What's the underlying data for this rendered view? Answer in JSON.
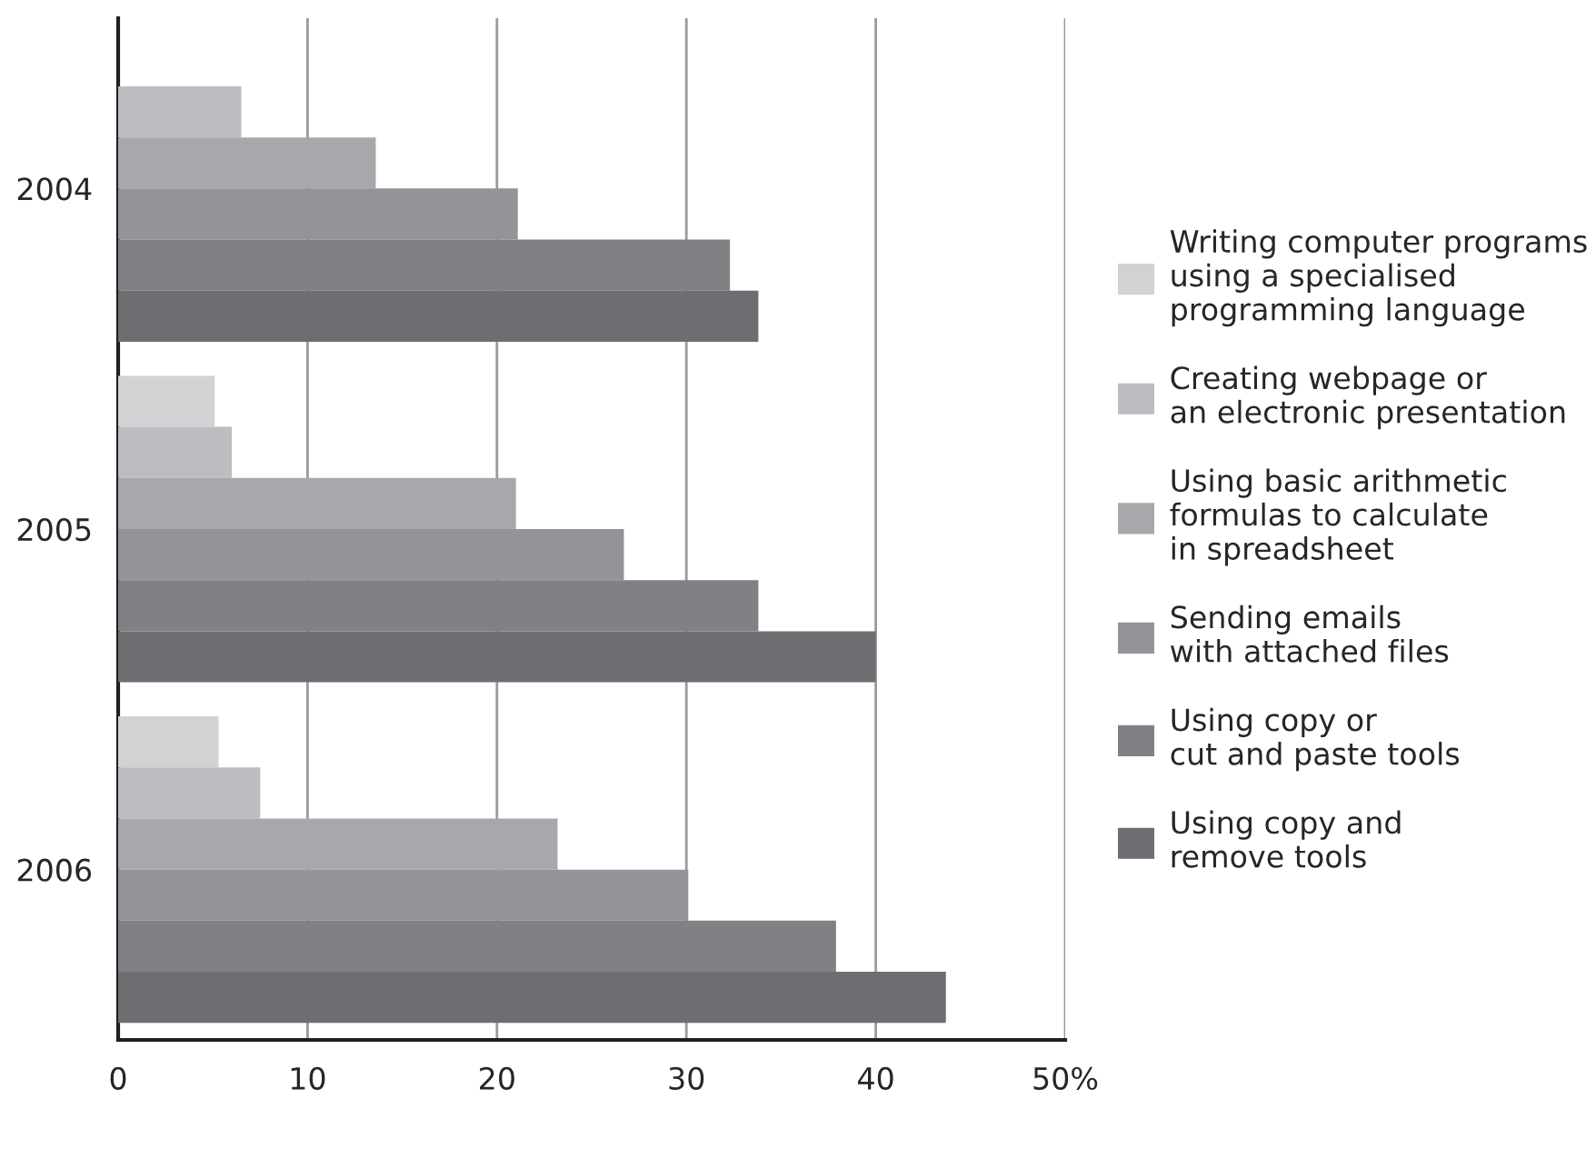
{
  "chart_data": {
    "type": "bar",
    "orientation": "horizontal",
    "categories": [
      "2004",
      "2005",
      "2006"
    ],
    "series": [
      {
        "name": "Writing computer programs\nusing a specialised\nprogramming language",
        "color": "#d1d2d4",
        "values": [
          null,
          5.1,
          5.3
        ]
      },
      {
        "name": "Creating webpage or\nan electronic presentation",
        "color": "#bcbdc0",
        "values": [
          6.5,
          6.0,
          7.5
        ]
      },
      {
        "name": "Using basic arithmetic\nformulas to calculate\nin spreadsheet",
        "color": "#a7a8ab",
        "values": [
          13.6,
          21.0,
          23.2
        ]
      },
      {
        "name": "Sending emails\nwith attached files",
        "color": "#939497",
        "values": [
          21.1,
          26.7,
          30.1
        ]
      },
      {
        "name": "Using copy or\ncut and paste tools",
        "color": "#808184",
        "values": [
          32.3,
          33.8,
          37.9
        ]
      },
      {
        "name": "Using copy and\nremove tools",
        "color": "#6d6e71",
        "values": [
          33.8,
          40.0,
          43.7
        ]
      }
    ],
    "xlim": [
      0,
      50
    ],
    "xticks": [
      0,
      10,
      20,
      30,
      40,
      {
        "value": 50,
        "label": "50%"
      }
    ],
    "grid": "x",
    "legend": "right"
  }
}
